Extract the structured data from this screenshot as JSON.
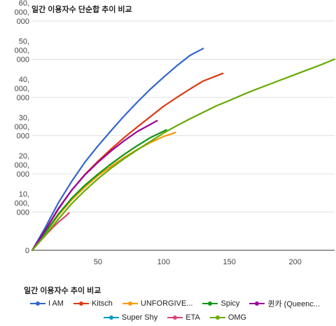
{
  "chart_data": {
    "type": "line",
    "title": "일간 이용자수 단순합 추이 비교",
    "legend_title": "일간 이용자수 추이 비교",
    "legend_position": "bottom",
    "grid": true,
    "xlabel": "",
    "ylabel": "",
    "xlim": [
      0,
      230
    ],
    "ylim": [
      0,
      60000
    ],
    "x_ticks": [
      "50",
      "100",
      "150",
      "200"
    ],
    "x_tick_values": [
      50,
      100,
      150,
      200
    ],
    "y_ticks": [
      {
        "value": 0,
        "lines": [
          "0"
        ]
      },
      {
        "value": 10000,
        "lines": [
          "10,",
          "000,",
          "000"
        ]
      },
      {
        "value": 20000,
        "lines": [
          "20,",
          "000,",
          "000"
        ]
      },
      {
        "value": 30000,
        "lines": [
          "30,",
          "000,",
          "000"
        ]
      },
      {
        "value": 40000,
        "lines": [
          "40,",
          "000,",
          "000"
        ]
      },
      {
        "value": 50000,
        "lines": [
          "50,",
          "000,",
          "000"
        ]
      },
      {
        "value": 60000,
        "lines": [
          "60,",
          "000,",
          "000"
        ]
      }
    ],
    "series": [
      {
        "name": "I AM",
        "color": "#3366cc",
        "points": [
          [
            0,
            0
          ],
          [
            10,
            6000
          ],
          [
            20,
            12500
          ],
          [
            30,
            18000
          ],
          [
            40,
            23000
          ],
          [
            50,
            27300
          ],
          [
            60,
            31300
          ],
          [
            70,
            35200
          ],
          [
            80,
            38800
          ],
          [
            90,
            42200
          ],
          [
            100,
            45300
          ],
          [
            110,
            48300
          ],
          [
            120,
            51000
          ],
          [
            130,
            52800
          ]
        ]
      },
      {
        "name": "Kitsch",
        "color": "#dc3912",
        "points": [
          [
            0,
            0
          ],
          [
            10,
            5200
          ],
          [
            20,
            10800
          ],
          [
            30,
            15700
          ],
          [
            40,
            19800
          ],
          [
            50,
            23300
          ],
          [
            60,
            26500
          ],
          [
            70,
            29500
          ],
          [
            80,
            32300
          ],
          [
            90,
            35000
          ],
          [
            100,
            37700
          ],
          [
            110,
            40000
          ],
          [
            120,
            42200
          ],
          [
            130,
            44300
          ],
          [
            145,
            46300
          ]
        ]
      },
      {
        "name": "UNFORGIVE...",
        "color": "#ff9900",
        "points": [
          [
            0,
            0
          ],
          [
            10,
            4500
          ],
          [
            20,
            9200
          ],
          [
            30,
            13200
          ],
          [
            40,
            16500
          ],
          [
            50,
            19500
          ],
          [
            60,
            22000
          ],
          [
            70,
            24300
          ],
          [
            80,
            26400
          ],
          [
            90,
            28200
          ],
          [
            100,
            29800
          ],
          [
            109,
            30800
          ]
        ]
      },
      {
        "name": "Spicy",
        "color": "#109618",
        "points": [
          [
            0,
            0
          ],
          [
            10,
            4700
          ],
          [
            20,
            9500
          ],
          [
            30,
            13600
          ],
          [
            40,
            17000
          ],
          [
            50,
            19900
          ],
          [
            60,
            22600
          ],
          [
            70,
            25100
          ],
          [
            80,
            27400
          ],
          [
            90,
            29500
          ],
          [
            102,
            31500
          ]
        ]
      },
      {
        "name": "퀸카 (Queenc...",
        "color": "#990099",
        "points": [
          [
            0,
            0
          ],
          [
            10,
            5300
          ],
          [
            20,
            11000
          ],
          [
            30,
            15700
          ],
          [
            40,
            19700
          ],
          [
            50,
            23000
          ],
          [
            60,
            26000
          ],
          [
            70,
            28700
          ],
          [
            80,
            31100
          ],
          [
            95,
            33900
          ]
        ]
      },
      {
        "name": "Super Shy",
        "color": "#0099c6",
        "points": []
      },
      {
        "name": "ETA",
        "color": "#dd4477",
        "points": [
          [
            0,
            0
          ],
          [
            5,
            2000
          ],
          [
            10,
            3900
          ],
          [
            15,
            5700
          ],
          [
            20,
            7400
          ],
          [
            25,
            8800
          ],
          [
            28,
            9800
          ]
        ]
      },
      {
        "name": "OMG",
        "color": "#66aa00",
        "points": [
          [
            0,
            0
          ],
          [
            10,
            4000
          ],
          [
            20,
            8200
          ],
          [
            30,
            12200
          ],
          [
            40,
            15600
          ],
          [
            50,
            18700
          ],
          [
            60,
            21500
          ],
          [
            70,
            24000
          ],
          [
            80,
            26300
          ],
          [
            90,
            28500
          ],
          [
            100,
            30700
          ],
          [
            110,
            32600
          ],
          [
            120,
            34400
          ],
          [
            130,
            36100
          ],
          [
            140,
            37800
          ],
          [
            150,
            39200
          ],
          [
            160,
            40700
          ],
          [
            170,
            42100
          ],
          [
            180,
            43400
          ],
          [
            190,
            44700
          ],
          [
            200,
            46000
          ],
          [
            210,
            47300
          ],
          [
            220,
            48600
          ],
          [
            230,
            50000
          ]
        ]
      }
    ]
  }
}
